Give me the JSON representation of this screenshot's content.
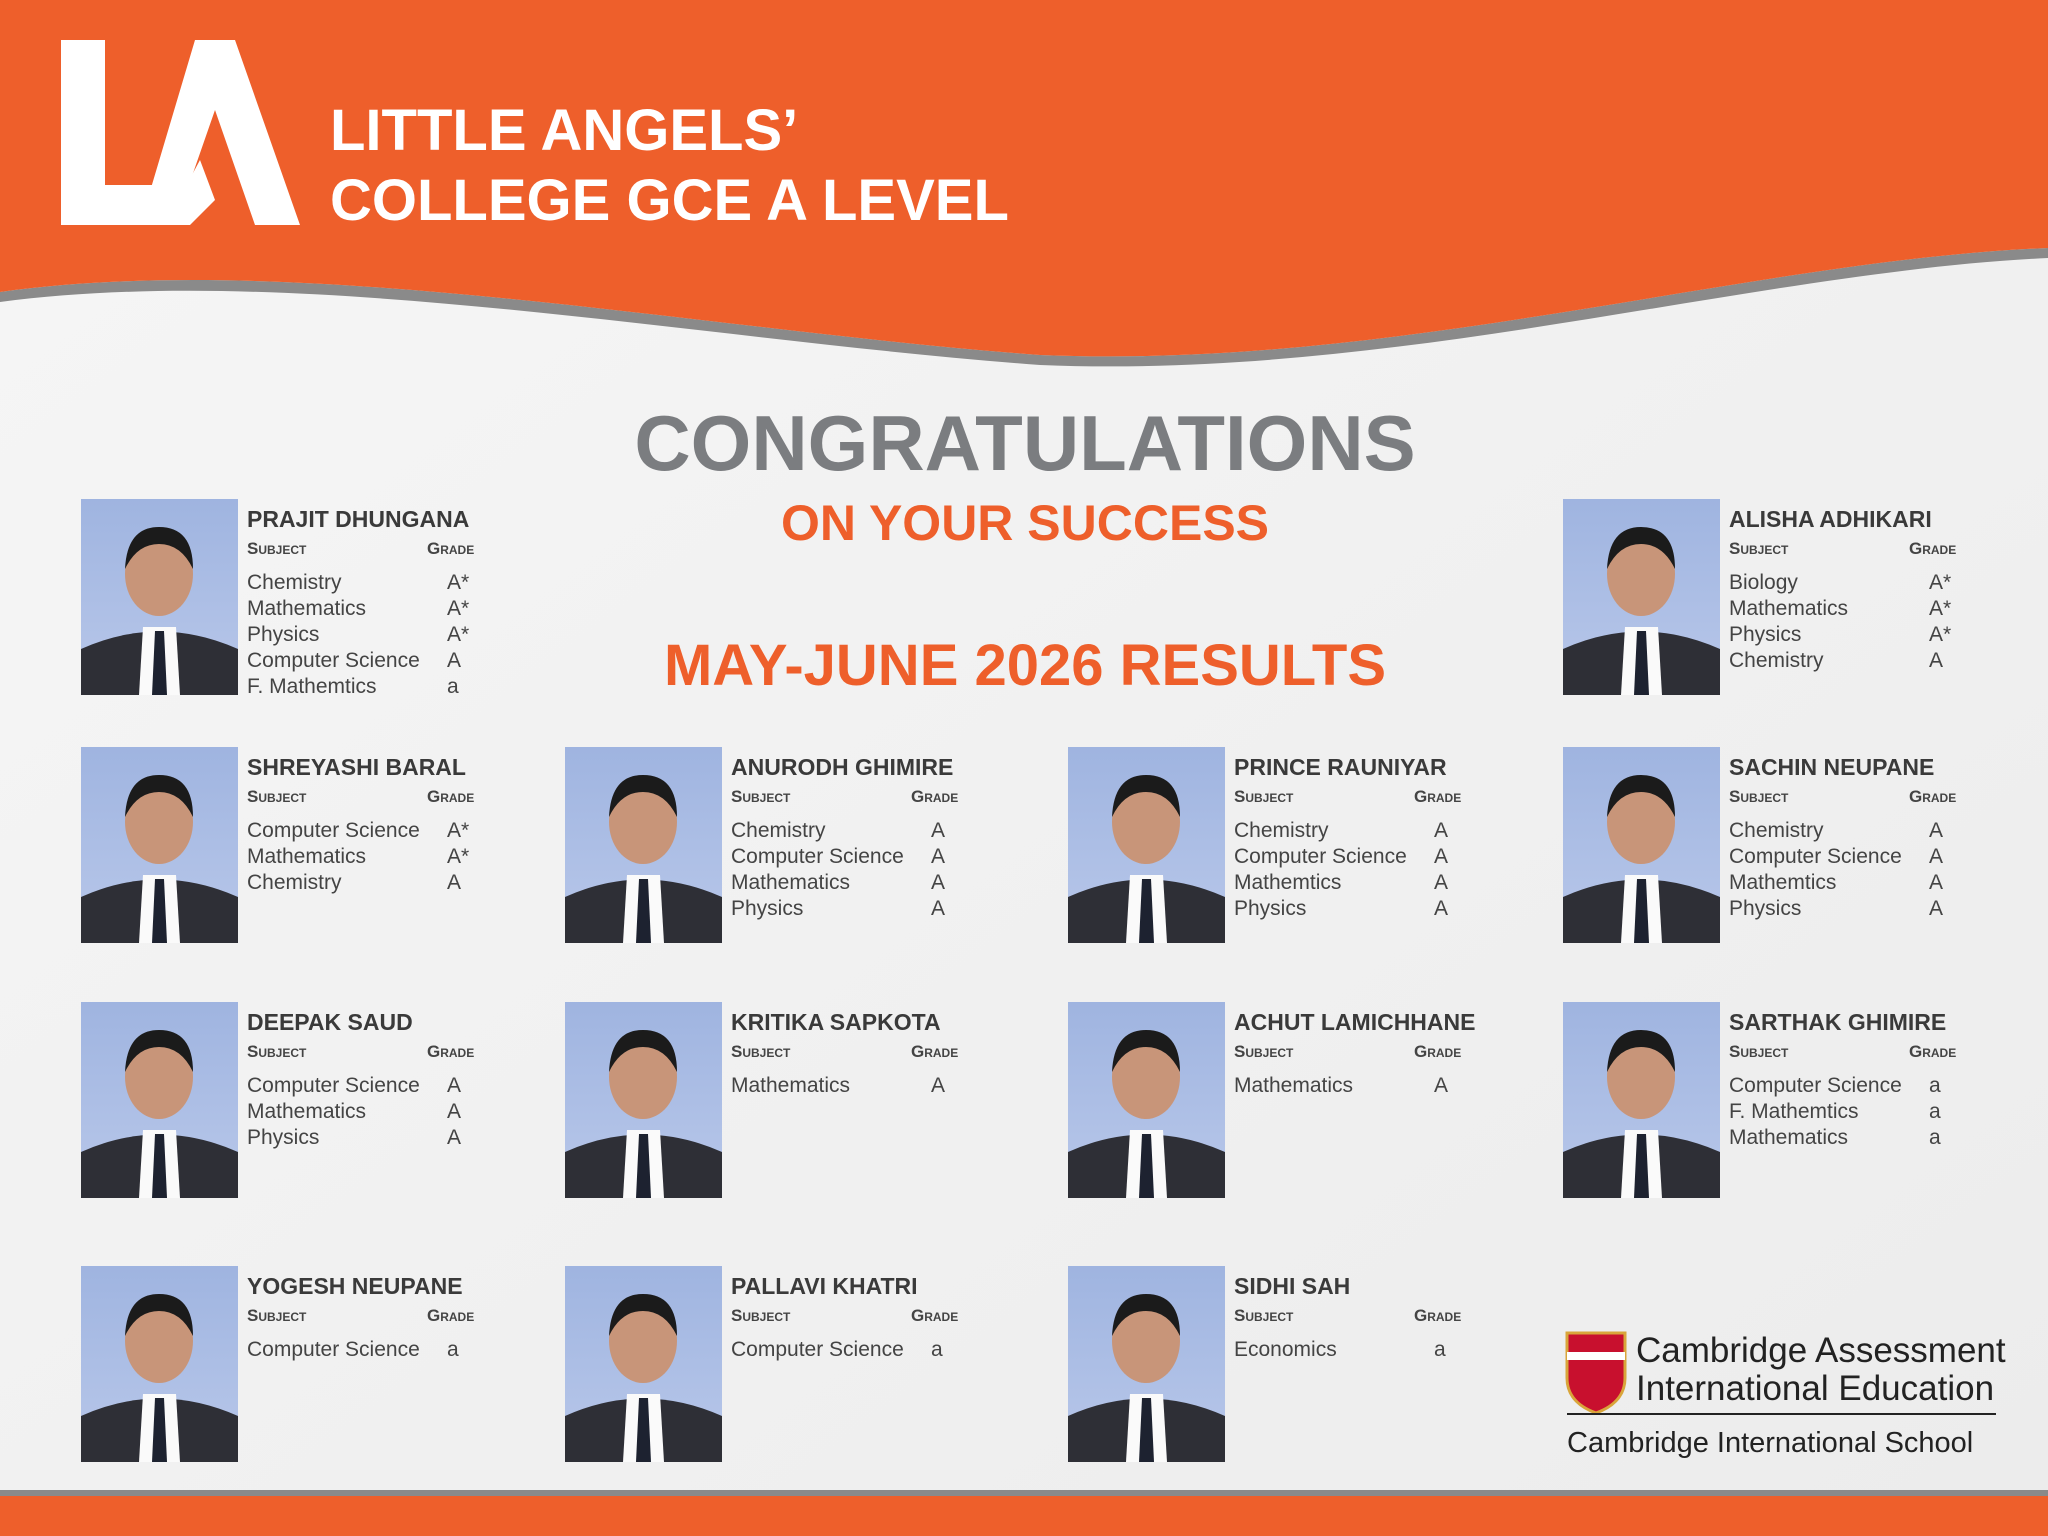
{
  "header": {
    "title_lines": [
      "LITTLE ANGELS’",
      "COLLEGE GCE A LEVEL"
    ]
  },
  "headline": "CONGRATULATIONS",
  "subheadline": "ON YOUR SUCCESS",
  "results_title": "MAY-JUNE 2026 RESULTS",
  "labels": {
    "subject": "Subject",
    "grade": "Grade"
  },
  "students": [
    {
      "name": "PRAJIT DHUNGANA",
      "rows": [
        [
          "Chemistry",
          "A*"
        ],
        [
          "Mathematics",
          "A*"
        ],
        [
          "Physics",
          "A*"
        ],
        [
          "Computer Science",
          "A"
        ],
        [
          "F. Mathemtics",
          "a"
        ]
      ]
    },
    {
      "name": "ALISHA ADHIKARI",
      "rows": [
        [
          "Biology",
          "A*"
        ],
        [
          "Mathematics",
          "A*"
        ],
        [
          "Physics",
          "A*"
        ],
        [
          "Chemistry",
          "A"
        ]
      ]
    },
    {
      "name": "SHREYASHI BARAL",
      "rows": [
        [
          "Computer Science",
          "A*"
        ],
        [
          "Mathematics",
          "A*"
        ],
        [
          "Chemistry",
          "A"
        ]
      ]
    },
    {
      "name": "ANURODH GHIMIRE",
      "rows": [
        [
          "Chemistry",
          "A"
        ],
        [
          "Computer Science",
          "A"
        ],
        [
          "Mathematics",
          "A"
        ],
        [
          "Physics",
          "A"
        ]
      ]
    },
    {
      "name": "PRINCE RAUNIYAR",
      "rows": [
        [
          "Chemistry",
          "A"
        ],
        [
          "Computer Science",
          "A"
        ],
        [
          "Mathemtics",
          "A"
        ],
        [
          "Physics",
          "A"
        ]
      ]
    },
    {
      "name": "SACHIN NEUPANE",
      "rows": [
        [
          "Chemistry",
          "A"
        ],
        [
          "Computer Science",
          "A"
        ],
        [
          "Mathemtics",
          "A"
        ],
        [
          "Physics",
          "A"
        ]
      ]
    },
    {
      "name": "DEEPAK SAUD",
      "rows": [
        [
          "Computer Science",
          "A"
        ],
        [
          "Mathematics",
          "A"
        ],
        [
          "Physics",
          "A"
        ]
      ]
    },
    {
      "name": "KRITIKA SAPKOTA",
      "rows": [
        [
          "Mathematics",
          "A"
        ]
      ]
    },
    {
      "name": "ACHUT LAMICHHANE",
      "rows": [
        [
          "Mathematics",
          "A"
        ]
      ]
    },
    {
      "name": "SARTHAK GHIMIRE",
      "rows": [
        [
          "Computer Science",
          "a"
        ],
        [
          "F. Mathemtics",
          "a"
        ],
        [
          "Mathematics",
          "a"
        ]
      ]
    },
    {
      "name": "YOGESH NEUPANE",
      "rows": [
        [
          "Computer Science",
          "a"
        ]
      ]
    },
    {
      "name": "PALLAVI KHATRI",
      "rows": [
        [
          "Computer Science",
          "a"
        ]
      ]
    },
    {
      "name": "SIDHI SAH",
      "rows": [
        [
          "Economics",
          "a"
        ]
      ]
    }
  ],
  "footer": {
    "brand_line1": "Cambridge Assessment",
    "brand_line2": "International Education",
    "brand_line3": "Cambridge International School"
  }
}
